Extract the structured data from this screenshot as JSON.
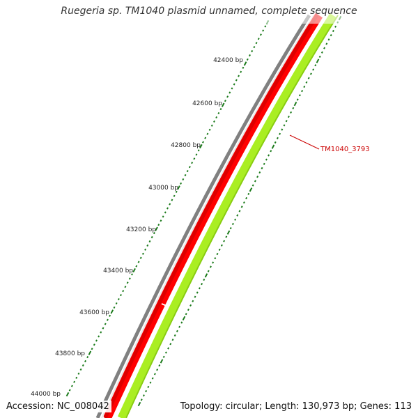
{
  "title": "Ruegeria sp. TM1040 plasmid unnamed, complete sequence",
  "accession_text": "Accession: NC_008042",
  "info_text": "Topology: circular; Length: 130,973 bp; Genes: 113",
  "colors": {
    "backbone": "#808080",
    "forward_genes": "#ff0000",
    "reverse_genes": "#aaee22",
    "ticks": "#1a7a1a",
    "gene_label": "#cc0000"
  },
  "ticks": {
    "labels": [
      "42400 bp",
      "42600 bp",
      "42800 bp",
      "43000 bp",
      "43200 bp",
      "43400 bp",
      "43600 bp",
      "43800 bp",
      "44000 bp"
    ]
  },
  "gene_label": "TM1040_3793"
}
